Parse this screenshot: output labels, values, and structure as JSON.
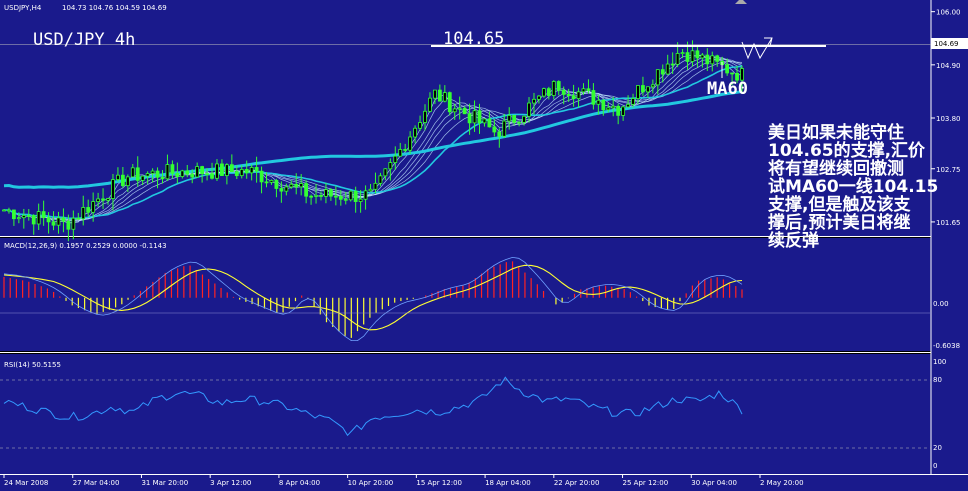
{
  "header": {
    "symbol_label": "USDJPY,H4",
    "ohlc_label": "104.73 104.76 104.59 104.69"
  },
  "annotations": {
    "pair_title": "USD/JPY 4h",
    "support_label": "104.65",
    "ma_label": "MA60",
    "commentary": [
      "美日如果未能守住",
      "104.65的支撑,汇价",
      "将有望继续回撤测",
      "试MA60一线104.15",
      "支撑,但是触及该支",
      "撑后,预计美日将继",
      "续反弹"
    ]
  },
  "price_axis": {
    "ticks": [
      "106.00",
      "104.90",
      "103.80",
      "102.75",
      "101.65"
    ],
    "current_price": "104.69"
  },
  "macd_panel": {
    "label": "MACD(12,26,9) 0.1957 0.2529 0.0000 -0.1143",
    "ticks": [
      "0.00",
      "-0.6038"
    ]
  },
  "rsi_panel": {
    "label": "RSI(14) 50.5155",
    "ticks": [
      "100",
      "80",
      "20",
      "0"
    ]
  },
  "time_axis": {
    "ticks": [
      "24 Mar 2008",
      "27 Mar 04:00",
      "31 Mar 20:00",
      "3 Apr 12:00",
      "8 Apr 04:00",
      "10 Apr 20:00",
      "15 Apr 12:00",
      "18 Apr 04:00",
      "22 Apr 20:00",
      "25 Apr 12:00",
      "30 Apr 04:00",
      "2 May 20:00"
    ]
  },
  "colors": {
    "background": "#1a1a8c",
    "candle": "#33ff33",
    "ma_thick": "#22c8e0",
    "ma_thin": "#bfe6ff",
    "macd_pos": "#ff2222",
    "macd_neg": "#ffff33",
    "signal": "#ffff33",
    "rsi": "#3399ff",
    "support": "#ffffff"
  },
  "chart_data": [
    {
      "type": "candlestick",
      "title": "USDJPY,H4",
      "ylim": [
        101.4,
        106.2
      ],
      "support_level": 104.65,
      "ma60_level": 104.15,
      "close_path": [
        {
          "x": "24 Mar 2008",
          "y": 101.9
        },
        {
          "x": "27 Mar 04:00",
          "y": 101.6
        },
        {
          "x": "31 Mar 20:00",
          "y": 102.6
        },
        {
          "x": "3 Apr 12:00",
          "y": 102.7
        },
        {
          "x": "8 Apr 04:00",
          "y": 102.7
        },
        {
          "x": "10 Apr 20:00",
          "y": 102.2
        },
        {
          "x": "15 Apr 12:00",
          "y": 102.2
        },
        {
          "x": "18 Apr 04:00",
          "y": 104.3
        },
        {
          "x": "22 Apr 20:00",
          "y": 103.5
        },
        {
          "x": "25 Apr 12:00",
          "y": 104.5
        },
        {
          "x": "30 Apr 04:00",
          "y": 104.0
        },
        {
          "x": "2 May 20:00",
          "y": 105.2
        },
        {
          "x": "end",
          "y": 104.69
        }
      ]
    },
    {
      "type": "bar",
      "title": "MACD(12,26,9)",
      "ylim": [
        -0.6038,
        0.55
      ],
      "values": [
        0.25,
        0.2,
        0.1,
        -0.1,
        -0.2,
        -0.1,
        0.1,
        0.3,
        0.4,
        0.2,
        0.0,
        -0.1,
        -0.2,
        0.05,
        -0.3,
        -0.5,
        -0.2,
        -0.05,
        0.0,
        0.1,
        0.15,
        0.35,
        0.45,
        0.2,
        -0.1,
        0.1,
        0.15,
        0.1,
        -0.1,
        -0.15,
        0.2,
        0.25,
        0.1
      ]
    },
    {
      "type": "line",
      "title": "RSI(14)",
      "ylim": [
        0,
        100
      ],
      "values": [
        60,
        55,
        50,
        45,
        48,
        55,
        50,
        62,
        68,
        65,
        58,
        62,
        60,
        55,
        48,
        42,
        30,
        45,
        48,
        52,
        50,
        55,
        62,
        80,
        68,
        60,
        62,
        55,
        50,
        48,
        55,
        62,
        60,
        68,
        52
      ]
    }
  ]
}
